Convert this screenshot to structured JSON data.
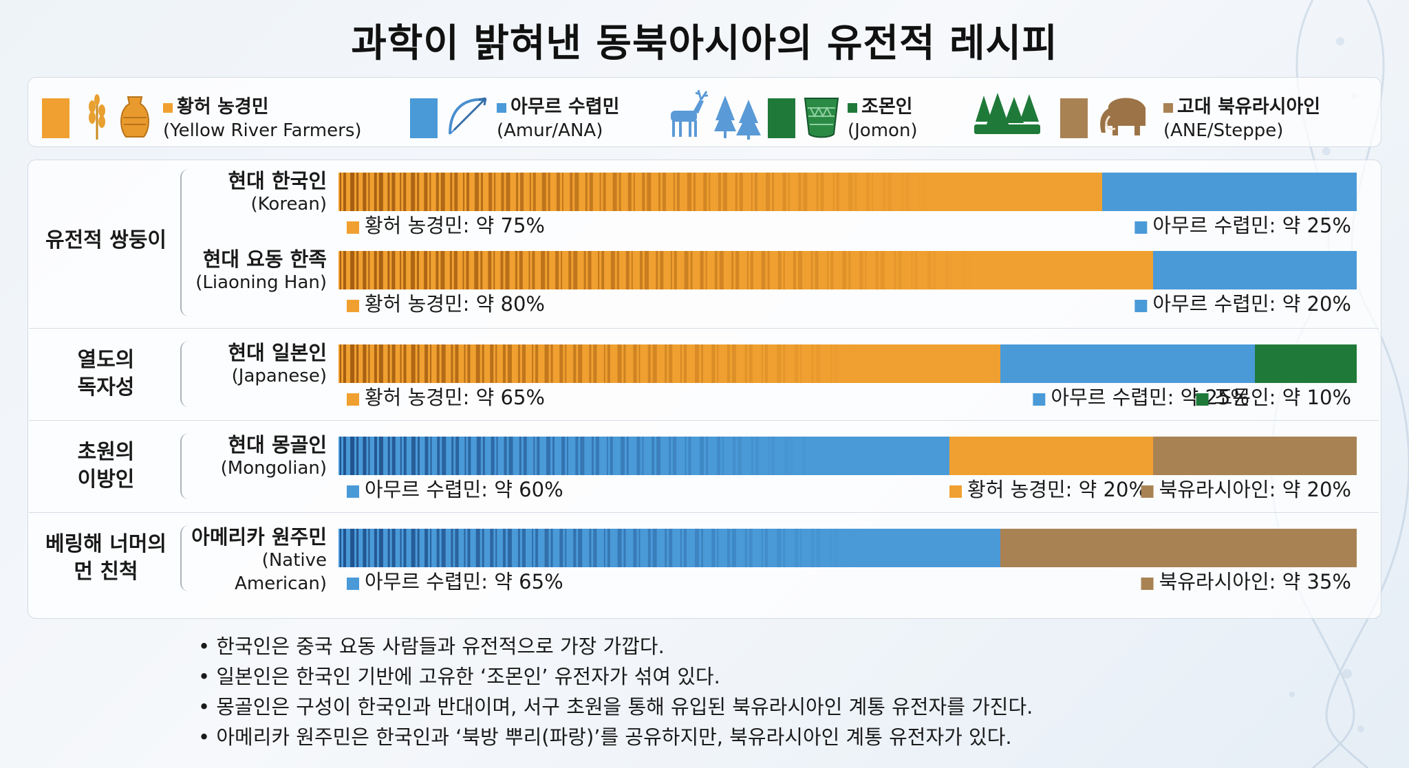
{
  "title": "과학이 밝혀낸 동북아시아의 유전적 레시피",
  "colors": {
    "yellow_river": "#f0a030",
    "amur": "#4a9ad8",
    "jomon": "#1f7a3a",
    "ane": "#a98254",
    "yellow_river_stripe": "#a05a10",
    "amur_stripe": "#1f4f8a"
  },
  "legend": [
    {
      "key": "yellow_river",
      "ko": "황허 농경민",
      "en": "(Yellow River Farmers)",
      "icons": [
        "rice-icon",
        "pottery-icon"
      ]
    },
    {
      "key": "amur",
      "ko": "아무르 수렵민",
      "en": "(Amur/ANA)",
      "icons": [
        "bow-arrow-icon",
        "deer-icon",
        "pine-trees-icon"
      ]
    },
    {
      "key": "jomon",
      "ko": "조몬인",
      "en": "(Jomon)",
      "icons": [
        "jomon-pot-icon",
        "forest-icon"
      ]
    },
    {
      "key": "ane",
      "ko": "고대 북유라시아인",
      "en": "(ANE/Steppe)",
      "icons": [
        "mammoth-icon"
      ]
    }
  ],
  "chart_data": {
    "type": "bar",
    "orientation": "horizontal-stacked",
    "unit": "%",
    "groups": [
      {
        "label": "유전적 쌍둥이",
        "rows": [
          0,
          1
        ]
      },
      {
        "label": "열도의 독자성",
        "rows": [
          2
        ]
      },
      {
        "label": "초원의 이방인",
        "rows": [
          3
        ]
      },
      {
        "label": "베링해 너머의 먼 친척",
        "rows": [
          4
        ]
      }
    ],
    "rows": [
      {
        "name_ko": "현대 한국인",
        "name_en": "(Korean)",
        "segments": [
          {
            "key": "yellow_river",
            "value": 75,
            "label": "황허 농경민: 약 75%"
          },
          {
            "key": "amur",
            "value": 25,
            "label": "아무르 수렵민: 약 25%"
          }
        ]
      },
      {
        "name_ko": "현대 요동 한족",
        "name_en": "(Liaoning Han)",
        "segments": [
          {
            "key": "yellow_river",
            "value": 80,
            "label": "황허 농경민: 약 80%"
          },
          {
            "key": "amur",
            "value": 20,
            "label": "아무르 수렵민: 약 20%"
          }
        ]
      },
      {
        "name_ko": "현대 일본인",
        "name_en": "(Japanese)",
        "segments": [
          {
            "key": "yellow_river",
            "value": 65,
            "label": "황허 농경민: 약 65%"
          },
          {
            "key": "amur",
            "value": 25,
            "label": "아무르 수렵민: 약 25%"
          },
          {
            "key": "jomon",
            "value": 10,
            "label": "조몬인: 약 10%"
          }
        ]
      },
      {
        "name_ko": "현대 몽골인",
        "name_en": "(Mongolian)",
        "segments": [
          {
            "key": "amur",
            "value": 60,
            "label": "아무르 수렵민: 약 60%"
          },
          {
            "key": "yellow_river",
            "value": 20,
            "label": "황허 농경민: 약 20%"
          },
          {
            "key": "ane",
            "value": 20,
            "label": "북유라시아인: 약 20%"
          }
        ]
      },
      {
        "name_ko": "아메리카 원주민",
        "name_en": "(Native American)",
        "segments": [
          {
            "key": "amur",
            "value": 65,
            "label": "아무르 수렵민: 약 65%"
          },
          {
            "key": "ane",
            "value": 35,
            "label": "북유라시아인: 약 35%"
          }
        ]
      }
    ]
  },
  "notes": [
    "한국인은 중국 요동 사람들과 유전적으로 가장 가깝다.",
    "일본인은 한국인 기반에 고유한 ‘조몬인’ 유전자가 섞여 있다.",
    "몽골인은 구성이 한국인과 반대이며, 서구 초원을 통해 유입된 북유라시아인 계통 유전자를 가진다.",
    "아메리카 원주민은 한국인과 ‘북방 뿌리(파랑)’를 공유하지만, 북유라시아인 계통 유전자가 있다."
  ]
}
